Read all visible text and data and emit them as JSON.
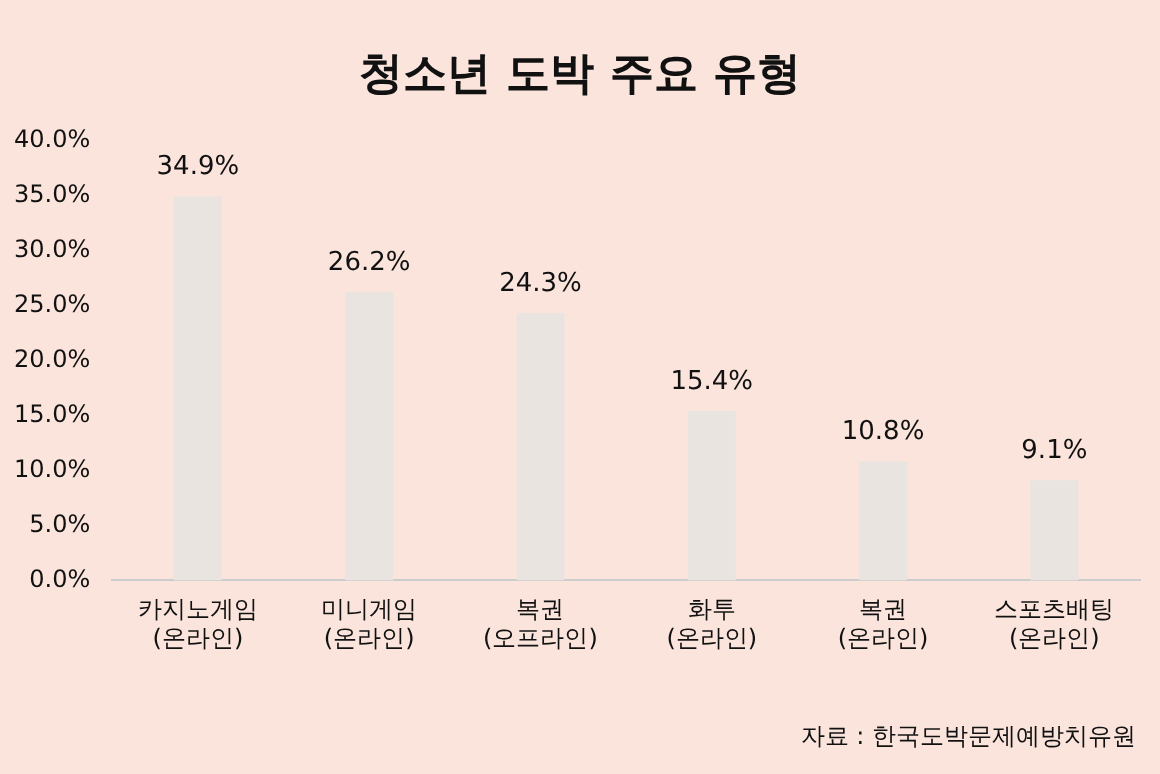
{
  "chart_data": {
    "type": "bar",
    "title": "청소년 도박 주요 유형",
    "categories": [
      "카지노게임\n(온라인)",
      "미니게임\n(온라인)",
      "복권\n(오프라인)",
      "화투\n(온라인)",
      "복권\n(온라인)",
      "스포츠배팅\n(온라인)"
    ],
    "values": [
      34.9,
      26.2,
      24.3,
      15.4,
      10.8,
      9.1
    ],
    "value_labels": [
      "34.9%",
      "26.2%",
      "24.3%",
      "15.4%",
      "10.8%",
      "9.1%"
    ],
    "color": "#e9e4e0",
    "ylim": [
      0,
      40
    ],
    "yticks": [
      {
        "value": 0,
        "label": "0.0%"
      },
      {
        "value": 5,
        "label": "5.0%"
      },
      {
        "value": 10,
        "label": "10.0%"
      },
      {
        "value": 15,
        "label": "15.0%"
      },
      {
        "value": 20,
        "label": "20.0%"
      },
      {
        "value": 25,
        "label": "25.0%"
      },
      {
        "value": 30,
        "label": "30.0%"
      },
      {
        "value": 35,
        "label": "35.0%"
      },
      {
        "value": 40,
        "label": "40.0%"
      }
    ],
    "grid": false,
    "legend": false,
    "annotations": [
      "자료 : 한국도박문제예방치유원"
    ]
  }
}
